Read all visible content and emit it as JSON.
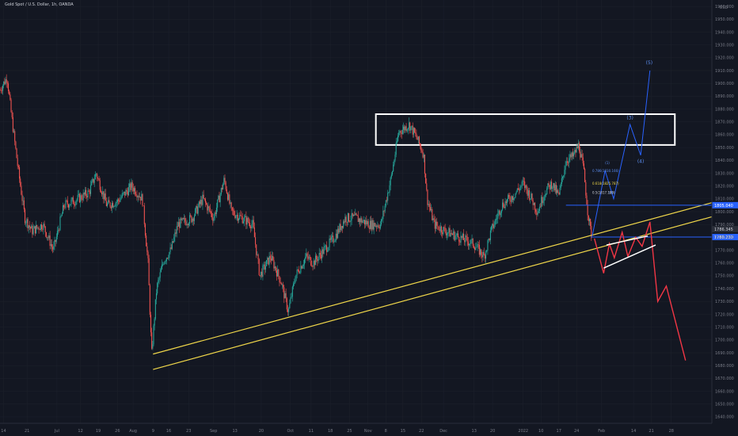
{
  "header": {
    "symbol": "Gold Spot / U.S. Dollar, 1h, OANDA",
    "currency": "USD"
  },
  "colors": {
    "background": "#131722",
    "grid": "#1e222d",
    "candle_up": "#26a69a",
    "candle_down": "#ef5350",
    "channel": "#f0d74a",
    "level_line": "#2962ff",
    "projection_bear": "#f23645",
    "projection_bull": "#2962ff",
    "zone_border": "#ffffff",
    "axis_text": "#787b86",
    "fib_text": "#f0d74a"
  },
  "chart_data": {
    "type": "candlestick",
    "y_axis": {
      "side": "right",
      "ylim": [
        1635,
        1965
      ],
      "ticks": [
        1640,
        1650,
        1660,
        1670,
        1680,
        1690,
        1700,
        1710,
        1720,
        1730,
        1740,
        1750,
        1760,
        1770,
        1780,
        1790,
        1800,
        1810,
        1820,
        1830,
        1840,
        1850,
        1860,
        1870,
        1880,
        1890,
        1900,
        1910,
        1920,
        1930,
        1940,
        1950,
        1960
      ],
      "tick_labels": [
        "1640.000",
        "1650.000",
        "1660.000",
        "1670.000",
        "1680.000",
        "1690.000",
        "1700.000",
        "1710.000",
        "1720.000",
        "1730.000",
        "1740.000",
        "1750.000",
        "1760.000",
        "1770.000",
        "1780.000",
        "1790.000",
        "1800.000",
        "1810.000",
        "1820.000",
        "1830.000",
        "1840.000",
        "1850.000",
        "1860.000",
        "1870.000",
        "1880.000",
        "1890.000",
        "1900.000",
        "1910.000",
        "1920.000",
        "1930.000",
        "1940.000",
        "1950.000",
        "1960.000"
      ]
    },
    "x_axis": {
      "xlim": [
        0,
        100
      ],
      "ticks": [
        {
          "x": 0.5,
          "label": "14"
        },
        {
          "x": 3.8,
          "label": "21"
        },
        {
          "x": 8.0,
          "label": "Jul"
        },
        {
          "x": 11.3,
          "label": "12"
        },
        {
          "x": 13.8,
          "label": "19"
        },
        {
          "x": 16.5,
          "label": "26"
        },
        {
          "x": 18.7,
          "label": "Aug"
        },
        {
          "x": 21.5,
          "label": "9"
        },
        {
          "x": 23.7,
          "label": "16"
        },
        {
          "x": 26.5,
          "label": "23"
        },
        {
          "x": 30.0,
          "label": "Sep"
        },
        {
          "x": 33.0,
          "label": "13"
        },
        {
          "x": 36.7,
          "label": "20"
        },
        {
          "x": 40.8,
          "label": "Oct"
        },
        {
          "x": 43.7,
          "label": "11"
        },
        {
          "x": 46.4,
          "label": "18"
        },
        {
          "x": 49.1,
          "label": "25"
        },
        {
          "x": 51.7,
          "label": "Nov"
        },
        {
          "x": 54.2,
          "label": "8"
        },
        {
          "x": 56.6,
          "label": "15"
        },
        {
          "x": 59.2,
          "label": "22"
        },
        {
          "x": 62.3,
          "label": "Dec"
        },
        {
          "x": 66.6,
          "label": "13"
        },
        {
          "x": 69.2,
          "label": "20"
        },
        {
          "x": 73.5,
          "label": "2022"
        },
        {
          "x": 76.0,
          "label": "10"
        },
        {
          "x": 78.5,
          "label": "17"
        },
        {
          "x": 81.0,
          "label": "24"
        },
        {
          "x": 84.5,
          "label": "Feb"
        },
        {
          "x": 89.0,
          "label": "14"
        },
        {
          "x": 91.5,
          "label": "21"
        },
        {
          "x": 94.3,
          "label": "28"
        }
      ]
    },
    "price_path": [
      [
        0,
        1895
      ],
      [
        1,
        1905
      ],
      [
        1.5,
        1880
      ],
      [
        2.5,
        1835
      ],
      [
        3.5,
        1795
      ],
      [
        4.5,
        1785
      ],
      [
        6,
        1790
      ],
      [
        7.5,
        1770
      ],
      [
        9,
        1805
      ],
      [
        11,
        1810
      ],
      [
        12.5,
        1815
      ],
      [
        13.5,
        1830
      ],
      [
        15,
        1805
      ],
      [
        16.5,
        1808
      ],
      [
        18.5,
        1820
      ],
      [
        20,
        1810
      ],
      [
        20.8,
        1760
      ],
      [
        21.3,
        1688
      ],
      [
        22,
        1740
      ],
      [
        23,
        1762
      ],
      [
        24,
        1770
      ],
      [
        25,
        1790
      ],
      [
        27,
        1795
      ],
      [
        28.5,
        1810
      ],
      [
        30,
        1795
      ],
      [
        31.5,
        1825
      ],
      [
        32.5,
        1800
      ],
      [
        34,
        1795
      ],
      [
        35.5,
        1790
      ],
      [
        36.5,
        1750
      ],
      [
        38,
        1765
      ],
      [
        39.5,
        1745
      ],
      [
        40.5,
        1722
      ],
      [
        41.5,
        1750
      ],
      [
        43,
        1765
      ],
      [
        44,
        1760
      ],
      [
        45.5,
        1770
      ],
      [
        47,
        1780
      ],
      [
        48.5,
        1795
      ],
      [
        50,
        1795
      ],
      [
        52,
        1790
      ],
      [
        53.5,
        1790
      ],
      [
        55,
        1828
      ],
      [
        56,
        1862
      ],
      [
        57.5,
        1868
      ],
      [
        58.5,
        1858
      ],
      [
        59.5,
        1845
      ],
      [
        60,
        1810
      ],
      [
        61,
        1790
      ],
      [
        62.5,
        1785
      ],
      [
        64.5,
        1780
      ],
      [
        66.5,
        1775
      ],
      [
        68,
        1765
      ],
      [
        69,
        1785
      ],
      [
        70.5,
        1805
      ],
      [
        72,
        1812
      ],
      [
        73.5,
        1822
      ],
      [
        74.5,
        1812
      ],
      [
        75.5,
        1800
      ],
      [
        76.5,
        1815
      ],
      [
        77.5,
        1822
      ],
      [
        78.5,
        1812
      ],
      [
        79.5,
        1840
      ],
      [
        80.5,
        1843
      ],
      [
        81.3,
        1852
      ],
      [
        82,
        1832
      ],
      [
        82.6,
        1798
      ],
      [
        83.1,
        1781
      ]
    ],
    "channel_lines": [
      {
        "name": "upper",
        "x": [
          21.5,
          100
        ],
        "y": [
          1689,
          1807
        ]
      },
      {
        "name": "lower",
        "x": [
          21.5,
          100
        ],
        "y": [
          1677,
          1796
        ]
      }
    ],
    "horizontal_levels": [
      {
        "y": 1805.04,
        "label": "1805.040",
        "x_start": 79.5
      },
      {
        "y": 1780.23,
        "label": "1780.230",
        "x_start": 83.0
      },
      {
        "y": 1786.345,
        "label": "1786.345",
        "x_start": 100
      }
    ],
    "fib_levels": [
      {
        "label": "(1)",
        "y": 1837,
        "x": 85.0,
        "color": "blue"
      },
      {
        "label": "0.786(1830.166)",
        "y": 1831,
        "x": 83.2,
        "color": "blue"
      },
      {
        "label": "0.618(1825.787)",
        "y": 1821,
        "x": 83.2,
        "color": "yellow"
      },
      {
        "label": "(2)",
        "y": 1814,
        "x": 85.5,
        "color": "blue"
      },
      {
        "label": "0.5(1817.189)",
        "y": 1814,
        "x": 83.2,
        "color": "white"
      }
    ],
    "resistance_zone": {
      "x": [
        52.8,
        94.8
      ],
      "y": [
        1852,
        1876
      ]
    },
    "bull_projection": {
      "points": [
        [
          83.2,
          1781
        ],
        [
          85.0,
          1832
        ],
        [
          86.2,
          1810
        ],
        [
          88.5,
          1868
        ],
        [
          90,
          1844
        ],
        [
          91.3,
          1910
        ]
      ],
      "labels": [
        {
          "text": "(3)",
          "x": 88.5,
          "y": 1872
        },
        {
          "text": "(4)",
          "x": 90,
          "y": 1838
        },
        {
          "text": "(5)",
          "x": 91.2,
          "y": 1915
        }
      ]
    },
    "bear_projection": {
      "points": [
        [
          83.5,
          1779
        ],
        [
          84.8,
          1752
        ],
        [
          85.6,
          1775
        ],
        [
          86.3,
          1764
        ],
        [
          87.4,
          1784
        ],
        [
          88.2,
          1765
        ],
        [
          89.3,
          1780
        ],
        [
          90.2,
          1773
        ],
        [
          91.3,
          1792
        ],
        [
          92.4,
          1730
        ],
        [
          93.6,
          1742
        ],
        [
          96.3,
          1684
        ]
      ]
    },
    "wedge_lines": [
      {
        "x": [
          85.2,
          91.0
        ],
        "y": [
          1774,
          1781
        ],
        "color": "white"
      },
      {
        "x": [
          84.8,
          92.1
        ],
        "y": [
          1756,
          1774
        ],
        "color": "white"
      }
    ]
  }
}
